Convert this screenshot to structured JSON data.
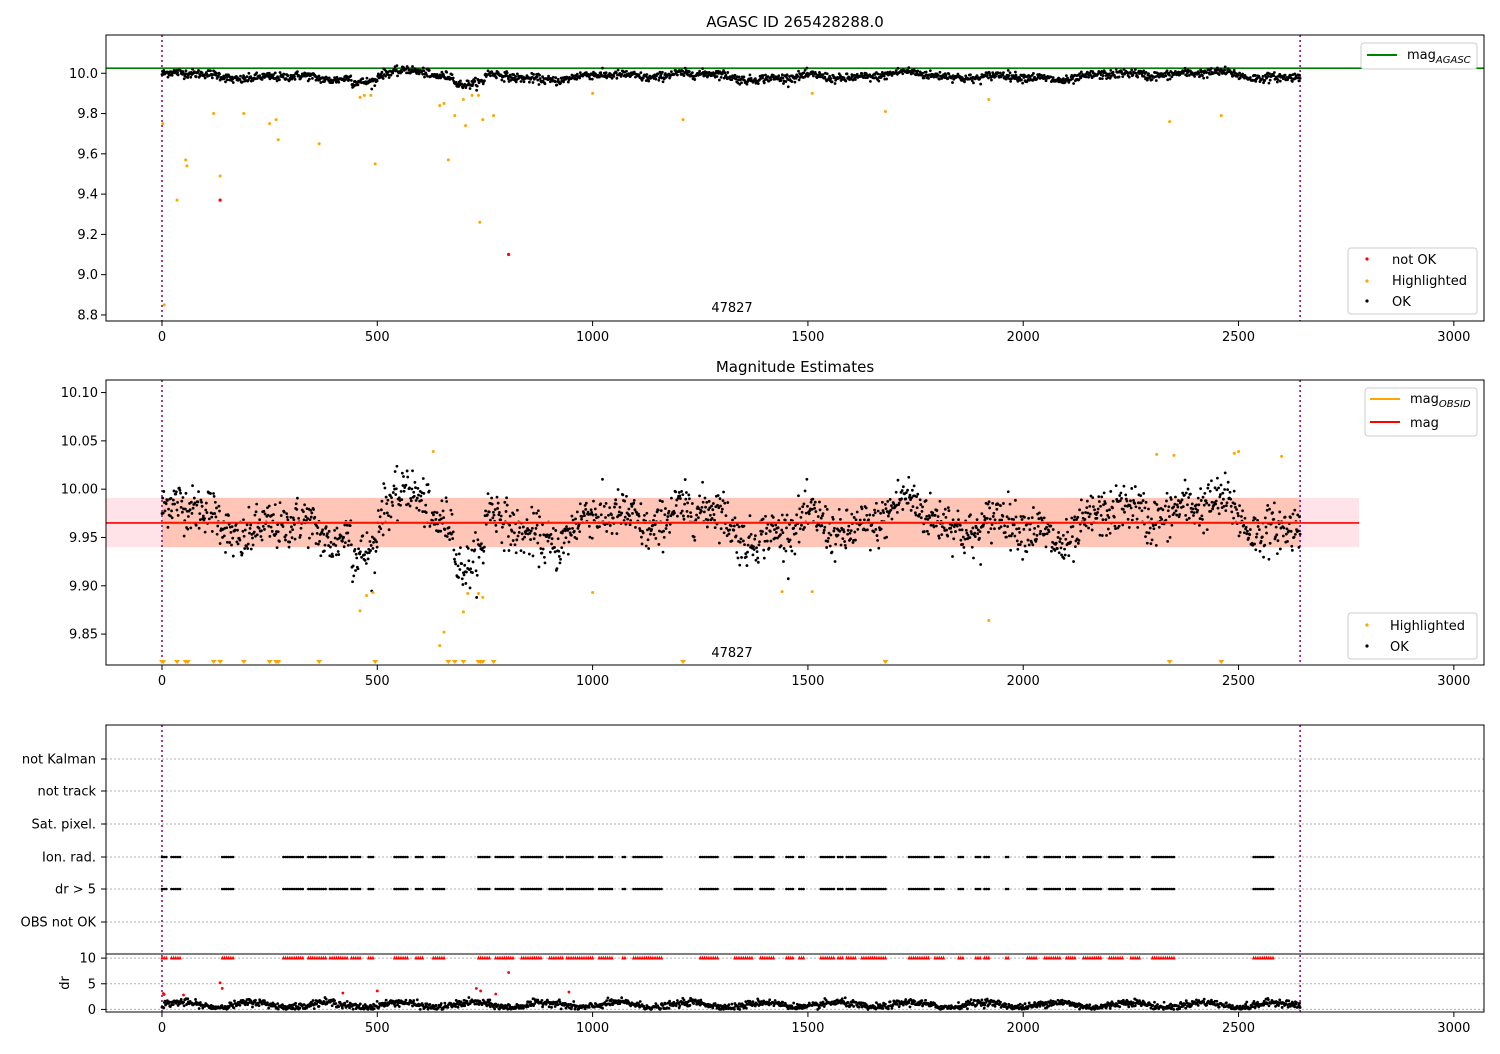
{
  "chart_data": [
    {
      "type": "scatter",
      "title": "AGASC ID 265428288.0",
      "xlim": [
        -130,
        3070
      ],
      "ylim": [
        8.77,
        10.19
      ],
      "xticks": [
        "0",
        "500",
        "1000",
        "1500",
        "2000",
        "2500",
        "3000"
      ],
      "yticks": [
        "8.8",
        "9.0",
        "9.2",
        "9.4",
        "9.6",
        "9.8",
        "10.0"
      ],
      "ytick_values": [
        8.8,
        9.0,
        9.2,
        9.4,
        9.6,
        9.8,
        10.0
      ],
      "obs_bounds": [
        0,
        2643
      ],
      "obsid_label": "47827",
      "mag_agasc": 10.025,
      "baseline": 9.965,
      "legend_lines": [
        {
          "label": "mag",
          "sub": "AGASC",
          "color": "#008000"
        }
      ],
      "legend_points": [
        {
          "label": "not OK",
          "color": "#ff0000"
        },
        {
          "label": "Highlighted",
          "color": "#ffa500"
        },
        {
          "label": "OK",
          "color": "#000000"
        }
      ],
      "highlighted": [
        [
          2,
          9.75
        ],
        [
          5,
          8.85
        ],
        [
          35,
          9.37
        ],
        [
          55,
          9.57
        ],
        [
          58,
          9.54
        ],
        [
          120,
          9.8
        ],
        [
          135,
          9.49
        ],
        [
          190,
          9.8
        ],
        [
          250,
          9.75
        ],
        [
          265,
          9.77
        ],
        [
          270,
          9.67
        ],
        [
          365,
          9.65
        ],
        [
          460,
          9.88
        ],
        [
          470,
          9.89
        ],
        [
          485,
          9.89
        ],
        [
          495,
          9.55
        ],
        [
          645,
          9.84
        ],
        [
          655,
          9.85
        ],
        [
          665,
          9.57
        ],
        [
          680,
          9.79
        ],
        [
          700,
          9.87
        ],
        [
          705,
          9.74
        ],
        [
          720,
          9.89
        ],
        [
          735,
          9.89
        ],
        [
          738,
          9.26
        ],
        [
          745,
          9.77
        ],
        [
          770,
          9.79
        ],
        [
          1000,
          9.9
        ],
        [
          1210,
          9.77
        ],
        [
          1510,
          9.9
        ],
        [
          1680,
          9.81
        ],
        [
          1920,
          9.87
        ],
        [
          2340,
          9.76
        ],
        [
          2460,
          9.79
        ]
      ],
      "not_ok": [
        [
          135,
          9.37
        ],
        [
          805,
          9.1
        ]
      ]
    },
    {
      "type": "scatter",
      "title": "Magnitude Estimates",
      "xlim": [
        -130,
        3070
      ],
      "ylim": [
        9.818,
        10.113
      ],
      "xticks": [
        "0",
        "500",
        "1000",
        "1500",
        "2000",
        "2500",
        "3000"
      ],
      "yticks": [
        "9.85",
        "9.90",
        "9.95",
        "10.00",
        "10.05",
        "10.10"
      ],
      "ytick_values": [
        9.85,
        9.9,
        9.95,
        10.0,
        10.05,
        10.1
      ],
      "obs_bounds": [
        0,
        2643
      ],
      "obsid_label": "47827",
      "mag": 9.965,
      "mag_obsid": 9.966,
      "band_outer": [
        9.94,
        9.991,
        -130,
        2780
      ],
      "band_inner": [
        9.94,
        9.991,
        0,
        2643
      ],
      "legend_lines": [
        {
          "label": "mag",
          "sub": "OBSID",
          "color": "#ffa500"
        },
        {
          "label": "mag",
          "sub": "",
          "color": "#ff0000"
        }
      ],
      "legend_points": [
        {
          "label": "Highlighted",
          "color": "#ffa500"
        },
        {
          "label": "OK",
          "color": "#000000"
        }
      ],
      "highlighted": [
        [
          460,
          9.874
        ],
        [
          475,
          9.89
        ],
        [
          490,
          9.893
        ],
        [
          630,
          10.039
        ],
        [
          645,
          9.838
        ],
        [
          655,
          9.852
        ],
        [
          700,
          9.873
        ],
        [
          710,
          9.892
        ],
        [
          735,
          9.892
        ],
        [
          745,
          9.888
        ],
        [
          1000,
          9.893
        ],
        [
          1440,
          9.894
        ],
        [
          1510,
          9.894
        ],
        [
          1920,
          9.864
        ],
        [
          2310,
          10.036
        ],
        [
          2350,
          10.035
        ],
        [
          2490,
          10.037
        ],
        [
          2500,
          10.039
        ],
        [
          2600,
          10.034
        ]
      ],
      "below_axis": [
        0,
        3,
        35,
        55,
        60,
        120,
        135,
        190,
        250,
        265,
        270,
        365,
        495,
        665,
        680,
        700,
        735,
        740,
        745,
        770,
        1210,
        1680,
        2340,
        2460
      ]
    },
    {
      "type": "scatter",
      "title": "",
      "xlim": [
        -130,
        3070
      ],
      "xticks": [
        "0",
        "500",
        "1000",
        "1500",
        "2000",
        "2500",
        "3000"
      ],
      "obs_bounds": [
        0,
        2643
      ],
      "flag_rows": [
        "not Kalman",
        "not track",
        "Sat. pixel.",
        "Ion. rad.",
        "dr > 5",
        "OBS not OK"
      ],
      "ion_ranges": [
        [
          0,
          10
        ],
        [
          22,
          42
        ],
        [
          140,
          168
        ],
        [
          282,
          330
        ],
        [
          340,
          380
        ],
        [
          390,
          430
        ],
        [
          440,
          462
        ],
        [
          480,
          492
        ],
        [
          540,
          570
        ],
        [
          590,
          605
        ],
        [
          630,
          655
        ],
        [
          735,
          760
        ],
        [
          775,
          815
        ],
        [
          835,
          880
        ],
        [
          900,
          930
        ],
        [
          940,
          1000
        ],
        [
          1015,
          1045
        ],
        [
          1070,
          1075
        ],
        [
          1095,
          1160
        ],
        [
          1250,
          1290
        ],
        [
          1330,
          1370
        ],
        [
          1390,
          1420
        ],
        [
          1450,
          1465
        ],
        [
          1480,
          1490
        ],
        [
          1530,
          1560
        ],
        [
          1570,
          1580
        ],
        [
          1590,
          1610
        ],
        [
          1625,
          1635
        ],
        [
          1640,
          1680
        ],
        [
          1735,
          1780
        ],
        [
          1795,
          1815
        ],
        [
          1850,
          1860
        ],
        [
          1890,
          1900
        ],
        [
          1910,
          1920
        ],
        [
          1960,
          1965
        ],
        [
          2010,
          2030
        ],
        [
          2050,
          2085
        ],
        [
          2100,
          2120
        ],
        [
          2140,
          2180
        ],
        [
          2200,
          2230
        ],
        [
          2250,
          2270
        ],
        [
          2300,
          2350
        ],
        [
          2535,
          2580
        ]
      ],
      "dr_ylabel": "dr",
      "dr_yticks": [
        "0",
        "5",
        "10"
      ],
      "dr_ytick_values": [
        0,
        5,
        10
      ],
      "dr_ylim": [
        -0.5,
        10.8
      ],
      "dr_outliers": [
        [
          3,
          3.1
        ],
        [
          5,
          2.9
        ],
        [
          50,
          2.8
        ],
        [
          135,
          5.2
        ],
        [
          140,
          4.1
        ],
        [
          420,
          3.2
        ],
        [
          500,
          3.6
        ],
        [
          730,
          4.1
        ],
        [
          740,
          3.6
        ],
        [
          775,
          3.0
        ],
        [
          805,
          7.2
        ],
        [
          945,
          3.4
        ]
      ]
    }
  ]
}
